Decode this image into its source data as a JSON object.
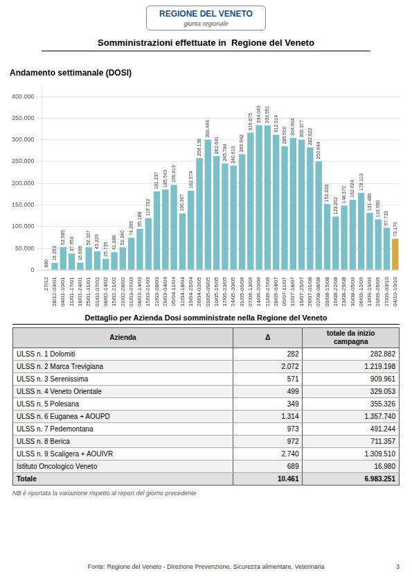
{
  "chart_data": {
    "type": "bar",
    "title": "Somministrazioni effettuate in  Regione del Veneto",
    "subtitle": "Andamento settimanale (DOSI)",
    "annotations": [
      "REGIONE DEL VENETO",
      "giunta regionale",
      "NB è riportata la variazione rispetto al report del giorno precedente",
      "Fonte: Regione del Veneto - Direzione Prevenzione, Sicurezza alimentare, Veterinaria",
      "3"
    ],
    "categories": [
      "27/12",
      "28/12-03/01",
      "04/01-10/01",
      "11/01-17/01",
      "18/01-24/01",
      "25/01-31/01",
      "01/02-07/02",
      "08/02-14/02",
      "15/02-21/02",
      "22/02-28/02",
      "01/03-07/03",
      "08/03-14/03",
      "15/03-21/03",
      "22/03-28/03",
      "29/03-04/04",
      "05/04-11/04",
      "12/04-18/04",
      "19/04-25/04",
      "26/04-02/05",
      "03/05-09/05",
      "10/05-16/05",
      "17/05-23/05",
      "24/05-30/05",
      "31/05-06/06",
      "07/06-13/06",
      "14/06-20/06",
      "21/06-27/06",
      "28/06-04/07",
      "05/07-11/07",
      "12/07-18/07",
      "19/07-25/07",
      "26/07-01/08",
      "02/08-08/08",
      "09/08-15/08",
      "16/08-22/08",
      "23/08-29/08",
      "30/08-05/09",
      "06/09-12/09",
      "13/09-19/09",
      "20/09-26/09",
      "27/09-03/10",
      "04/10-10/10"
    ],
    "values": [
      880,
      16353,
      52965,
      37953,
      16666,
      52337,
      43229,
      25739,
      41288,
      52340,
      74295,
      95188,
      119702,
      181237,
      185543,
      196313,
      130307,
      182974,
      258130,
      300444,
      262641,
      245784,
      240610,
      266942,
      316675,
      334049,
      333551,
      312014,
      285500,
      304904,
      300377,
      282622,
      250644,
      152028,
      123202,
      148370,
      162024,
      178113,
      131488,
      116930,
      97732,
      72170
    ],
    "value_labels": [
      "880",
      "16.353",
      "52.965",
      "37.953",
      "16.666",
      "52.337",
      "43.229",
      "25.739",
      "41.288",
      "52.340",
      "74.295",
      "95.188",
      "119.702",
      "181.237",
      "185.543",
      "196.313",
      "130.307",
      "182.974",
      "258.130",
      "300.444",
      "262.641",
      "245.784",
      "240.610",
      "266.942",
      "316.675",
      "334.049",
      "333.551",
      "312.014",
      "285.500",
      "304.904",
      "300.377",
      "282.622",
      "250.644",
      "152.028",
      "123.202",
      "148.370",
      "162.024",
      "178.113",
      "131.488",
      "116.930",
      "97.732",
      "72.170"
    ],
    "colors": [
      "#7BBFC9",
      "#7BBFC9",
      "#7BBFC9",
      "#7BBFC9",
      "#7BBFC9",
      "#7BBFC9",
      "#7BBFC9",
      "#7BBFC9",
      "#7BBFC9",
      "#7BBFC9",
      "#7BBFC9",
      "#7BBFC9",
      "#7BBFC9",
      "#7BBFC9",
      "#7BBFC9",
      "#7BBFC9",
      "#7BBFC9",
      "#7BBFC9",
      "#7BBFC9",
      "#7BBFC9",
      "#7BBFC9",
      "#7BBFC9",
      "#7BBFC9",
      "#7BBFC9",
      "#7BBFC9",
      "#7BBFC9",
      "#7BBFC9",
      "#7BBFC9",
      "#7BBFC9",
      "#7BBFC9",
      "#7BBFC9",
      "#7BBFC9",
      "#7BBFC9",
      "#7BBFC9",
      "#7BBFC9",
      "#7BBFC9",
      "#7BBFC9",
      "#7BBFC9",
      "#7BBFC9",
      "#7BBFC9",
      "#7BBFC9",
      "#D4A843"
    ],
    "ylim": [
      0,
      430000
    ],
    "yticks": [
      0,
      {
        "value": 50000,
        "label": "50.000"
      },
      {
        "value": 100000,
        "label": "100.000"
      },
      {
        "value": 150000,
        "label": "150.000"
      },
      {
        "value": 200000,
        "label": "200.000"
      },
      {
        "value": 250000,
        "label": "250.000"
      },
      {
        "value": 300000,
        "label": "300.000"
      },
      {
        "value": 350000,
        "label": "350.000"
      },
      {
        "value": 400000,
        "label": "400.000"
      }
    ],
    "grid": true,
    "data_labels": true
  },
  "table": {
    "title": "Dettaglio per Azienda Dosi somministrate nella Regione del Veneto",
    "headers": [
      "Azienda",
      "Δ",
      "totale da inizio\ncampagna"
    ],
    "rows": [
      [
        "ULSS n. 1 Dolomiti",
        "282",
        "282.882"
      ],
      [
        "ULSS n. 2 Marca Trevigiana",
        "2.072",
        "1.219.198"
      ],
      [
        "ULSS n. 3 Serenissima",
        "571",
        "909.961"
      ],
      [
        "ULSS n. 4 Veneto Orientale",
        "499",
        "329.053"
      ],
      [
        "ULSS n. 5 Polesana",
        "349",
        "355.326"
      ],
      [
        "ULSS n. 6 Euganea + AOUPD",
        "1.314",
        "1.357.740"
      ],
      [
        "ULSS n. 7 Pedemontana",
        "973",
        "491.244"
      ],
      [
        "ULSS n. 8 Berica",
        "972",
        "711.357"
      ],
      [
        "ULSS n. 9 Scaligera + AOUIVR",
        "2.740",
        "1.309.510"
      ],
      [
        "Istituto Oncologico Veneto",
        "689",
        "16.980"
      ],
      [
        "Totale",
        "10.461",
        "6.983.251"
      ]
    ]
  }
}
